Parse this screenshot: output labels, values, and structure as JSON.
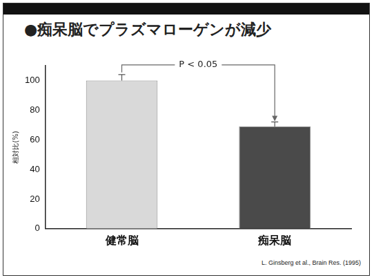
{
  "chart_data": {
    "type": "bar",
    "title": "●痴呆脳でプラズマローゲンが減少",
    "y_label": "相対比(%)",
    "categories": [
      "健常脳",
      "痴呆脳"
    ],
    "values": [
      100,
      69
    ],
    "errors": [
      4,
      3
    ],
    "colors": [
      "#d9d9d9",
      "#4a4a4a"
    ],
    "ylim": [
      0,
      110
    ],
    "yticks": [
      0,
      20,
      40,
      60,
      80,
      100
    ],
    "grid": false,
    "annotations": [
      "P < 0.05"
    ],
    "source": "L. Ginsberg et al., Brain Res. (1995)"
  }
}
